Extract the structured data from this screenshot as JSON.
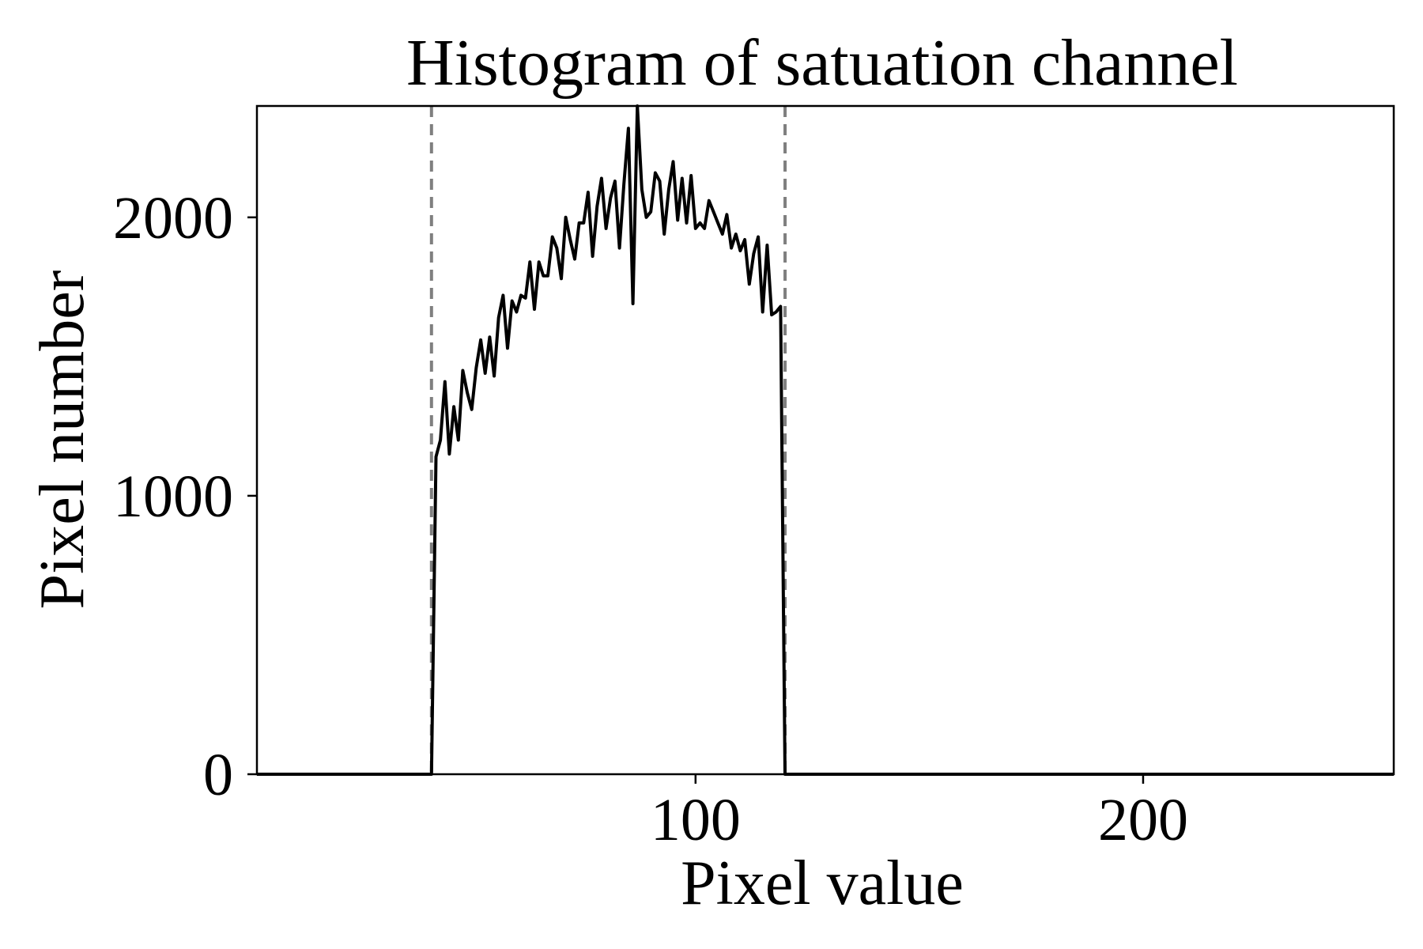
{
  "chart_data": {
    "type": "line",
    "title": "Histogram of satuation channel",
    "xlabel": "Pixel value",
    "ylabel": "Pixel number",
    "xlim": [
      2,
      256
    ],
    "ylim": [
      0,
      2400
    ],
    "xticks": [
      100,
      200
    ],
    "yticks": [
      0,
      1000,
      2000
    ],
    "grid": false,
    "legend": "none",
    "line_color": "#000000",
    "reference_line_color": "#7f7f7f",
    "reference_lines_x": [
      41,
      120
    ],
    "series": [
      {
        "x": [
          2,
          20,
          40,
          41,
          42,
          43,
          44,
          45,
          46,
          47,
          48,
          49,
          50,
          51,
          52,
          53,
          54,
          55,
          56,
          57,
          58,
          59,
          60,
          61,
          62,
          63,
          64,
          65,
          66,
          67,
          68,
          69,
          70,
          71,
          72,
          73,
          74,
          75,
          76,
          77,
          78,
          79,
          80,
          81,
          82,
          83,
          84,
          85,
          86,
          87,
          88,
          89,
          90,
          91,
          92,
          93,
          94,
          95,
          96,
          97,
          98,
          99,
          100,
          101,
          102,
          103,
          104,
          105,
          106,
          107,
          108,
          109,
          110,
          111,
          112,
          113,
          114,
          115,
          116,
          117,
          118,
          119,
          120,
          121,
          130,
          150,
          180,
          200,
          220,
          256
        ],
        "y": [
          0,
          0,
          0,
          0,
          1140,
          1200,
          1410,
          1150,
          1320,
          1200,
          1450,
          1370,
          1310,
          1460,
          1560,
          1440,
          1570,
          1430,
          1640,
          1720,
          1530,
          1700,
          1660,
          1720,
          1710,
          1840,
          1670,
          1840,
          1790,
          1790,
          1930,
          1890,
          1780,
          2000,
          1920,
          1850,
          1980,
          1980,
          2090,
          1860,
          2040,
          2140,
          1960,
          2070,
          2130,
          1890,
          2120,
          2320,
          1690,
          2400,
          2100,
          2000,
          2020,
          2160,
          2130,
          1940,
          2100,
          2200,
          1990,
          2140,
          1980,
          2150,
          1960,
          1980,
          1960,
          2060,
          2020,
          1980,
          1940,
          2010,
          1890,
          1940,
          1880,
          1920,
          1760,
          1870,
          1930,
          1660,
          1900,
          1650,
          1660,
          1680,
          0,
          0,
          0,
          0,
          0,
          0,
          0,
          0
        ]
      }
    ]
  }
}
